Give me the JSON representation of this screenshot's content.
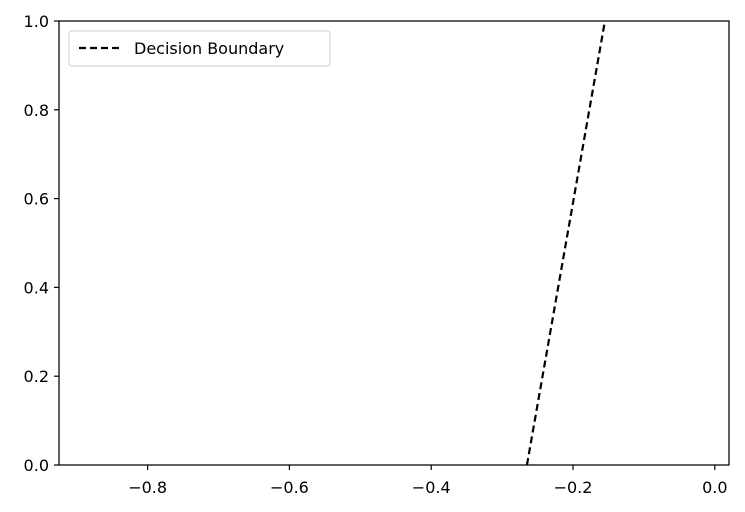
{
  "chart_data": {
    "type": "line",
    "title": "",
    "xlabel": "",
    "ylabel": "",
    "xlim": [
      -0.925,
      0.02
    ],
    "ylim": [
      0.0,
      1.0
    ],
    "grid": false,
    "legend": {
      "placement": "top-left",
      "entries": [
        "Decision Boundary"
      ]
    },
    "x_ticks": [
      {
        "value": -0.8,
        "label": "−0.8"
      },
      {
        "value": -0.6,
        "label": "−0.6"
      },
      {
        "value": -0.4,
        "label": "−0.4"
      },
      {
        "value": -0.2,
        "label": "−0.2"
      },
      {
        "value": 0.0,
        "label": "0.0"
      }
    ],
    "y_ticks": [
      {
        "value": 0.0,
        "label": "0.0"
      },
      {
        "value": 0.2,
        "label": "0.2"
      },
      {
        "value": 0.4,
        "label": "0.4"
      },
      {
        "value": 0.6,
        "label": "0.6"
      },
      {
        "value": 0.8,
        "label": "0.8"
      },
      {
        "value": 1.0,
        "label": "1.0"
      }
    ],
    "series": [
      {
        "name": "Decision Boundary",
        "style": "dashed",
        "color": "#000000",
        "x": [
          -0.265,
          -0.155
        ],
        "y": [
          0.0,
          1.0
        ]
      }
    ]
  }
}
